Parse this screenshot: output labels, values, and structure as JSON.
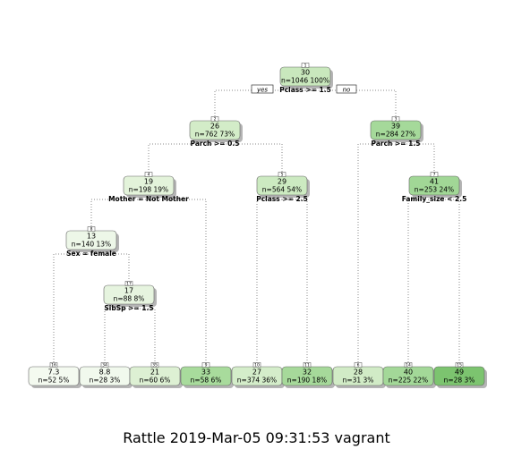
{
  "diagram": {
    "edge_labels": {
      "left": "yes",
      "right": "no"
    },
    "caption": "Rattle 2019-Mar-05 09:31:53 vagrant",
    "nodes": [
      {
        "id": "1",
        "value": "30",
        "stats": "n=1046 100%",
        "split": "Pclass >= 1.5",
        "color": "#c9e8bd"
      },
      {
        "id": "2",
        "value": "26",
        "stats": "n=762 73%",
        "split": "Parch >= 0.5",
        "color": "#d3ecc8"
      },
      {
        "id": "3",
        "value": "39",
        "stats": "n=284 27%",
        "split": "Parch >= 1.5",
        "color": "#a5d99a"
      },
      {
        "id": "4",
        "value": "19",
        "stats": "n=198 19%",
        "split": "Mother = Not Mother",
        "color": "#e3f3da"
      },
      {
        "id": "5",
        "value": "29",
        "stats": "n=564 54%",
        "split": "Pclass >= 2.5",
        "color": "#cceac1"
      },
      {
        "id": "7",
        "value": "41",
        "stats": "n=253 24%",
        "split": "Family_size < 2.5",
        "color": "#a1d796"
      },
      {
        "id": "8",
        "value": "13",
        "stats": "n=140 13%",
        "split": "Sex = female",
        "color": "#edf7e8"
      },
      {
        "id": "17",
        "value": "17",
        "stats": "n=88 8%",
        "split": "SibSp >= 1.5",
        "color": "#e6f4df"
      },
      {
        "id": "16",
        "value": "7.3",
        "stats": "n=52 5%",
        "split": "",
        "color": "#f4faf0"
      },
      {
        "id": "34",
        "value": "8.8",
        "stats": "n=28 3%",
        "split": "",
        "color": "#f1f9ed"
      },
      {
        "id": "35",
        "value": "21",
        "stats": "n=60 6%",
        "split": "",
        "color": "#ddf0d3"
      },
      {
        "id": "9",
        "value": "33",
        "stats": "n=58 6%",
        "split": "",
        "color": "#a8db9c"
      },
      {
        "id": "10",
        "value": "27",
        "stats": "n=374 36%",
        "split": "",
        "color": "#d4edca"
      },
      {
        "id": "11",
        "value": "32",
        "stats": "n=190 18%",
        "split": "",
        "color": "#a6d99a"
      },
      {
        "id": "6",
        "value": "28",
        "stats": "n=31 3%",
        "split": "",
        "color": "#d1ebc6"
      },
      {
        "id": "14",
        "value": "40",
        "stats": "n=225 22%",
        "split": "",
        "color": "#a3d898"
      },
      {
        "id": "15",
        "value": "49",
        "stats": "n=28 3%",
        "split": "",
        "color": "#7cc46f"
      }
    ],
    "edges": [
      {
        "from": "1",
        "to": "2"
      },
      {
        "from": "1",
        "to": "3"
      },
      {
        "from": "2",
        "to": "4"
      },
      {
        "from": "2",
        "to": "5"
      },
      {
        "from": "3",
        "to": "6"
      },
      {
        "from": "3",
        "to": "7"
      },
      {
        "from": "4",
        "to": "8"
      },
      {
        "from": "4",
        "to": "9"
      },
      {
        "from": "5",
        "to": "10"
      },
      {
        "from": "5",
        "to": "11"
      },
      {
        "from": "7",
        "to": "14"
      },
      {
        "from": "7",
        "to": "15"
      },
      {
        "from": "8",
        "to": "16"
      },
      {
        "from": "8",
        "to": "17"
      },
      {
        "from": "17",
        "to": "34"
      },
      {
        "from": "17",
        "to": "35"
      }
    ]
  }
}
